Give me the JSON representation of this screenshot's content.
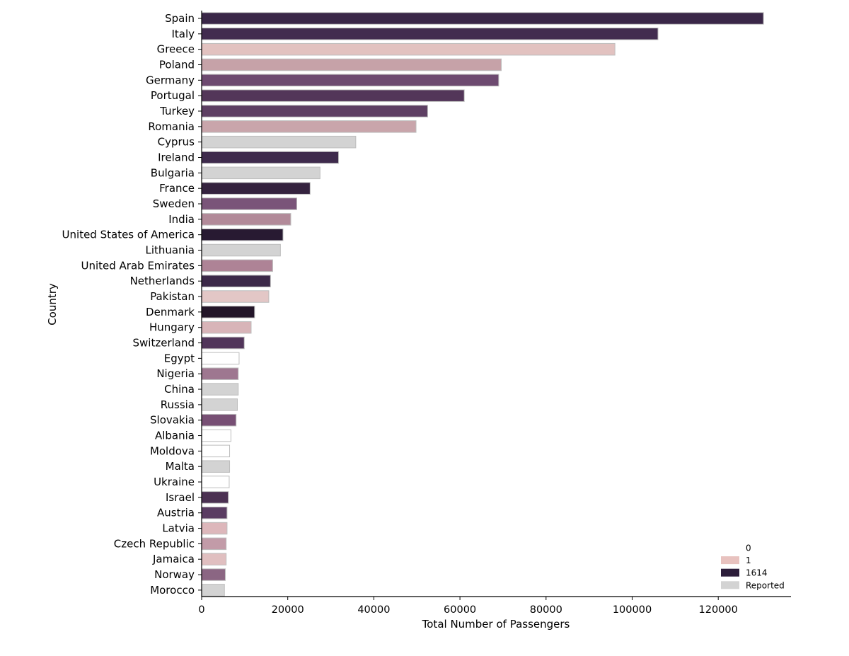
{
  "chart_data": {
    "type": "bar",
    "orientation": "horizontal",
    "xlabel": "Total Number of Passengers",
    "ylabel": "Country",
    "xlim": [
      0,
      137000
    ],
    "xticks": [
      0,
      20000,
      40000,
      60000,
      80000,
      100000,
      120000
    ],
    "xtick_labels": [
      "0",
      "20000",
      "40000",
      "60000",
      "80000",
      "100000",
      "120000"
    ],
    "grid": false,
    "legend": {
      "placement": "bottom-right",
      "entries": [
        {
          "label": "0",
          "color": "#ffffff"
        },
        {
          "label": "1",
          "color": "#e8c2bf"
        },
        {
          "label": "1614",
          "color": "#2c1d3a"
        },
        {
          "label": "Reported",
          "color": "#d3d3d3"
        }
      ]
    },
    "categories": [
      "Spain",
      "Italy",
      "Greece",
      "Poland",
      "Germany",
      "Portugal",
      "Turkey",
      "Romania",
      "Cyprus",
      "Ireland",
      "Bulgaria",
      "France",
      "Sweden",
      "India",
      "United States of America",
      "Lithuania",
      "United Arab Emirates",
      "Netherlands",
      "Pakistan",
      "Denmark",
      "Hungary",
      "Switzerland",
      "Egypt",
      "Nigeria",
      "China",
      "Russia",
      "Slovakia",
      "Albania",
      "Moldova",
      "Malta",
      "Ukraine",
      "Israel",
      "Austria",
      "Latvia",
      "Czech Republic",
      "Jamaica",
      "Norway",
      "Morocco"
    ],
    "values": [
      130500,
      106000,
      96000,
      69600,
      69000,
      61000,
      52500,
      49800,
      35800,
      31800,
      27500,
      25200,
      22100,
      20700,
      18900,
      18300,
      16500,
      16000,
      15600,
      12300,
      11500,
      9900,
      8700,
      8500,
      8500,
      8300,
      8000,
      6800,
      6500,
      6500,
      6400,
      6200,
      5900,
      5900,
      5700,
      5700,
      5500,
      5300
    ],
    "bar_colors": [
      "#3a2748",
      "#422c4f",
      "#e2c2c0",
      "#c6a2a8",
      "#6d4a70",
      "#533659",
      "#5e3f63",
      "#c9a5ab",
      "#d3d3d3",
      "#3e2a4c",
      "#d3d3d3",
      "#35233f",
      "#7a5479",
      "#b28a99",
      "#281a32",
      "#d3d3d3",
      "#ae8396",
      "#3c2949",
      "#e3c7c6",
      "#231629",
      "#d8b4b8",
      "#51355a",
      "#ffffff",
      "#9e7790",
      "#d3d3d3",
      "#d3d3d3",
      "#774f74",
      "#ffffff",
      "#ffffff",
      "#d3d3d3",
      "#ffffff",
      "#4b3152",
      "#5a3c62",
      "#ddb7bb",
      "#c29ba8",
      "#e0bfc0",
      "#8b6683",
      "#d3d3d3"
    ]
  }
}
